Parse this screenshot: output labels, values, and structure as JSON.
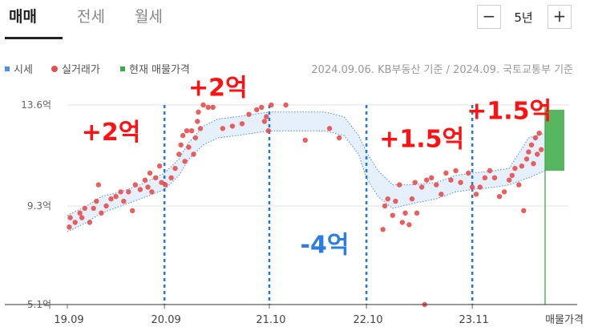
{
  "tabs": [
    {
      "label": "매매",
      "active": true
    },
    {
      "label": "전세",
      "active": false
    },
    {
      "label": "월세",
      "active": false
    }
  ],
  "period": {
    "minus_label": "−",
    "value_label": "5년",
    "plus_label": "+"
  },
  "legend": {
    "items": [
      {
        "label": "시세",
        "color": "#4a90e2",
        "shape": "square"
      },
      {
        "label": "실거래가",
        "color": "#e84c4c",
        "shape": "dot"
      },
      {
        "label": "현재 매물가격",
        "color": "#3aaa45",
        "shape": "square"
      }
    ],
    "basis_text": "2024.09.06. KB부동산 기준 / 2024.09. 국토교통부 기준"
  },
  "chart_data": {
    "type": "scatter",
    "y_unit": "억",
    "ylim": [
      5.1,
      13.6
    ],
    "y_ticks": [
      {
        "value": 13.6,
        "label": "13.6억"
      },
      {
        "value": 9.3,
        "label": "9.3억"
      },
      {
        "value": 5.1,
        "label": "5.1억"
      }
    ],
    "x_ticks": [
      {
        "value": 2019.75,
        "label": "19.09"
      },
      {
        "value": 2020.75,
        "label": "20.09"
      },
      {
        "value": 2021.83,
        "label": "21.10"
      },
      {
        "value": 2022.83,
        "label": "22.10"
      },
      {
        "value": 2023.92,
        "label": "23.11"
      }
    ],
    "xlim": [
      2019.75,
      2024.67
    ],
    "current_listing": {
      "axis_label": "매물가격",
      "low": 10.8,
      "high": 13.4,
      "color": "#3aaa45"
    },
    "period_dividers": [
      2020.75,
      2021.83,
      2022.83,
      2023.92
    ],
    "annotations": [
      {
        "text": "+2억",
        "x": 2020.2,
        "y": 12.1,
        "color": "#ff1111"
      },
      {
        "text": "+2억",
        "x": 2021.3,
        "y": 14.0,
        "color": "#ff1111"
      },
      {
        "text": "-4억",
        "x": 2022.4,
        "y": 7.3,
        "color": "#2b7de1"
      },
      {
        "text": "+1.5억",
        "x": 2023.4,
        "y": 11.8,
        "color": "#ff1111"
      },
      {
        "text": "+1.5억",
        "x": 2024.3,
        "y": 13.0,
        "color": "#ff1111"
      }
    ],
    "series": [
      {
        "name": "시세",
        "kind": "band",
        "color": "#4a90e2",
        "points": [
          {
            "x": 2019.75,
            "low": 8.2,
            "high": 8.9
          },
          {
            "x": 2019.95,
            "low": 8.6,
            "high": 9.3
          },
          {
            "x": 2020.1,
            "low": 9.0,
            "high": 9.7
          },
          {
            "x": 2020.3,
            "low": 9.3,
            "high": 9.9
          },
          {
            "x": 2020.5,
            "low": 9.6,
            "high": 10.2
          },
          {
            "x": 2020.75,
            "low": 10.0,
            "high": 10.7
          },
          {
            "x": 2020.9,
            "low": 10.6,
            "high": 11.3
          },
          {
            "x": 2021.0,
            "low": 11.3,
            "high": 12.0
          },
          {
            "x": 2021.15,
            "low": 11.9,
            "high": 12.7
          },
          {
            "x": 2021.3,
            "low": 12.2,
            "high": 13.0
          },
          {
            "x": 2021.5,
            "low": 12.3,
            "high": 13.1
          },
          {
            "x": 2021.83,
            "low": 12.5,
            "high": 13.3
          },
          {
            "x": 2022.1,
            "low": 12.5,
            "high": 13.3
          },
          {
            "x": 2022.4,
            "low": 12.5,
            "high": 13.3
          },
          {
            "x": 2022.6,
            "low": 12.3,
            "high": 13.1
          },
          {
            "x": 2022.75,
            "low": 11.5,
            "high": 12.3
          },
          {
            "x": 2022.83,
            "low": 10.5,
            "high": 11.6
          },
          {
            "x": 2022.95,
            "low": 9.7,
            "high": 10.8
          },
          {
            "x": 2023.1,
            "low": 9.2,
            "high": 10.2
          },
          {
            "x": 2023.3,
            "low": 9.4,
            "high": 10.2
          },
          {
            "x": 2023.55,
            "low": 9.6,
            "high": 10.3
          },
          {
            "x": 2023.75,
            "low": 9.9,
            "high": 10.6
          },
          {
            "x": 2023.92,
            "low": 10.0,
            "high": 10.7
          },
          {
            "x": 2024.15,
            "low": 10.1,
            "high": 10.8
          },
          {
            "x": 2024.3,
            "low": 10.2,
            "high": 10.9
          },
          {
            "x": 2024.5,
            "low": 10.5,
            "high": 12.2
          },
          {
            "x": 2024.67,
            "low": 10.8,
            "high": 12.4
          }
        ]
      },
      {
        "name": "실거래가",
        "kind": "scatter",
        "color": "#e84c4c",
        "points": [
          {
            "x": 2019.77,
            "y": 8.4
          },
          {
            "x": 2019.78,
            "y": 8.8
          },
          {
            "x": 2019.83,
            "y": 8.6
          },
          {
            "x": 2019.88,
            "y": 9.0
          },
          {
            "x": 2019.9,
            "y": 8.8
          },
          {
            "x": 2019.93,
            "y": 9.2
          },
          {
            "x": 2019.98,
            "y": 8.6
          },
          {
            "x": 2020.02,
            "y": 9.2
          },
          {
            "x": 2020.05,
            "y": 9.5
          },
          {
            "x": 2020.07,
            "y": 10.2
          },
          {
            "x": 2020.1,
            "y": 9.0
          },
          {
            "x": 2020.15,
            "y": 9.3
          },
          {
            "x": 2020.2,
            "y": 9.6
          },
          {
            "x": 2020.25,
            "y": 9.7
          },
          {
            "x": 2020.3,
            "y": 9.9
          },
          {
            "x": 2020.33,
            "y": 9.5
          },
          {
            "x": 2020.38,
            "y": 9.9
          },
          {
            "x": 2020.42,
            "y": 9.1
          },
          {
            "x": 2020.45,
            "y": 10.2
          },
          {
            "x": 2020.5,
            "y": 10.0
          },
          {
            "x": 2020.55,
            "y": 10.4
          },
          {
            "x": 2020.58,
            "y": 10.1
          },
          {
            "x": 2020.6,
            "y": 10.7
          },
          {
            "x": 2020.62,
            "y": 9.9
          },
          {
            "x": 2020.66,
            "y": 10.5
          },
          {
            "x": 2020.7,
            "y": 11.0
          },
          {
            "x": 2020.72,
            "y": 10.3
          },
          {
            "x": 2020.76,
            "y": 10.2
          },
          {
            "x": 2020.82,
            "y": 10.5
          },
          {
            "x": 2020.86,
            "y": 10.9
          },
          {
            "x": 2020.9,
            "y": 11.5
          },
          {
            "x": 2020.92,
            "y": 11.9
          },
          {
            "x": 2020.94,
            "y": 12.3
          },
          {
            "x": 2020.96,
            "y": 11.2
          },
          {
            "x": 2020.98,
            "y": 12.5
          },
          {
            "x": 2021.0,
            "y": 11.8
          },
          {
            "x": 2021.03,
            "y": 12.5
          },
          {
            "x": 2021.05,
            "y": 11.5
          },
          {
            "x": 2021.07,
            "y": 12.2
          },
          {
            "x": 2021.09,
            "y": 12.9
          },
          {
            "x": 2021.1,
            "y": 13.3
          },
          {
            "x": 2021.12,
            "y": 12.6
          },
          {
            "x": 2021.15,
            "y": 13.6
          },
          {
            "x": 2021.2,
            "y": 13.5
          },
          {
            "x": 2021.25,
            "y": 13.5
          },
          {
            "x": 2021.35,
            "y": 12.6
          },
          {
            "x": 2021.45,
            "y": 12.7
          },
          {
            "x": 2021.55,
            "y": 12.8
          },
          {
            "x": 2021.62,
            "y": 13.2
          },
          {
            "x": 2021.7,
            "y": 13.4
          },
          {
            "x": 2021.75,
            "y": 13.5
          },
          {
            "x": 2021.78,
            "y": 12.9
          },
          {
            "x": 2021.8,
            "y": 13.1
          },
          {
            "x": 2021.82,
            "y": 12.5
          },
          {
            "x": 2021.85,
            "y": 13.6
          },
          {
            "x": 2022.0,
            "y": 13.6
          },
          {
            "x": 2022.2,
            "y": 12.1
          },
          {
            "x": 2022.45,
            "y": 12.6
          },
          {
            "x": 2022.55,
            "y": 12.2
          },
          {
            "x": 2023.0,
            "y": 8.3
          },
          {
            "x": 2023.02,
            "y": 9.3
          },
          {
            "x": 2023.05,
            "y": 9.6
          },
          {
            "x": 2023.1,
            "y": 8.9
          },
          {
            "x": 2023.13,
            "y": 9.5
          },
          {
            "x": 2023.17,
            "y": 10.2
          },
          {
            "x": 2023.2,
            "y": 8.6
          },
          {
            "x": 2023.23,
            "y": 9.0
          },
          {
            "x": 2023.27,
            "y": 8.5
          },
          {
            "x": 2023.3,
            "y": 9.6
          },
          {
            "x": 2023.33,
            "y": 10.3
          },
          {
            "x": 2023.35,
            "y": 9.0
          },
          {
            "x": 2023.4,
            "y": 10.1
          },
          {
            "x": 2023.43,
            "y": 5.1
          },
          {
            "x": 2023.45,
            "y": 10.4
          },
          {
            "x": 2023.5,
            "y": 10.5
          },
          {
            "x": 2023.55,
            "y": 10.2
          },
          {
            "x": 2023.6,
            "y": 9.8
          },
          {
            "x": 2023.65,
            "y": 10.7
          },
          {
            "x": 2023.7,
            "y": 10.4
          },
          {
            "x": 2023.75,
            "y": 10.8
          },
          {
            "x": 2023.8,
            "y": 10.3
          },
          {
            "x": 2023.88,
            "y": 10.7
          },
          {
            "x": 2023.92,
            "y": 10.1
          },
          {
            "x": 2023.96,
            "y": 9.8
          },
          {
            "x": 2024.0,
            "y": 10.1
          },
          {
            "x": 2024.05,
            "y": 10.5
          },
          {
            "x": 2024.1,
            "y": 10.8
          },
          {
            "x": 2024.15,
            "y": 10.5
          },
          {
            "x": 2024.2,
            "y": 9.7
          },
          {
            "x": 2024.25,
            "y": 9.9
          },
          {
            "x": 2024.3,
            "y": 10.4
          },
          {
            "x": 2024.33,
            "y": 10.6
          },
          {
            "x": 2024.36,
            "y": 10.9
          },
          {
            "x": 2024.4,
            "y": 10.2
          },
          {
            "x": 2024.43,
            "y": 11.0
          },
          {
            "x": 2024.45,
            "y": 9.1
          },
          {
            "x": 2024.48,
            "y": 11.3
          },
          {
            "x": 2024.5,
            "y": 11.6
          },
          {
            "x": 2024.53,
            "y": 11.9
          },
          {
            "x": 2024.55,
            "y": 11.1
          },
          {
            "x": 2024.57,
            "y": 12.2
          },
          {
            "x": 2024.59,
            "y": 11.5
          },
          {
            "x": 2024.61,
            "y": 12.4
          },
          {
            "x": 2024.63,
            "y": 11.7
          }
        ]
      }
    ]
  }
}
